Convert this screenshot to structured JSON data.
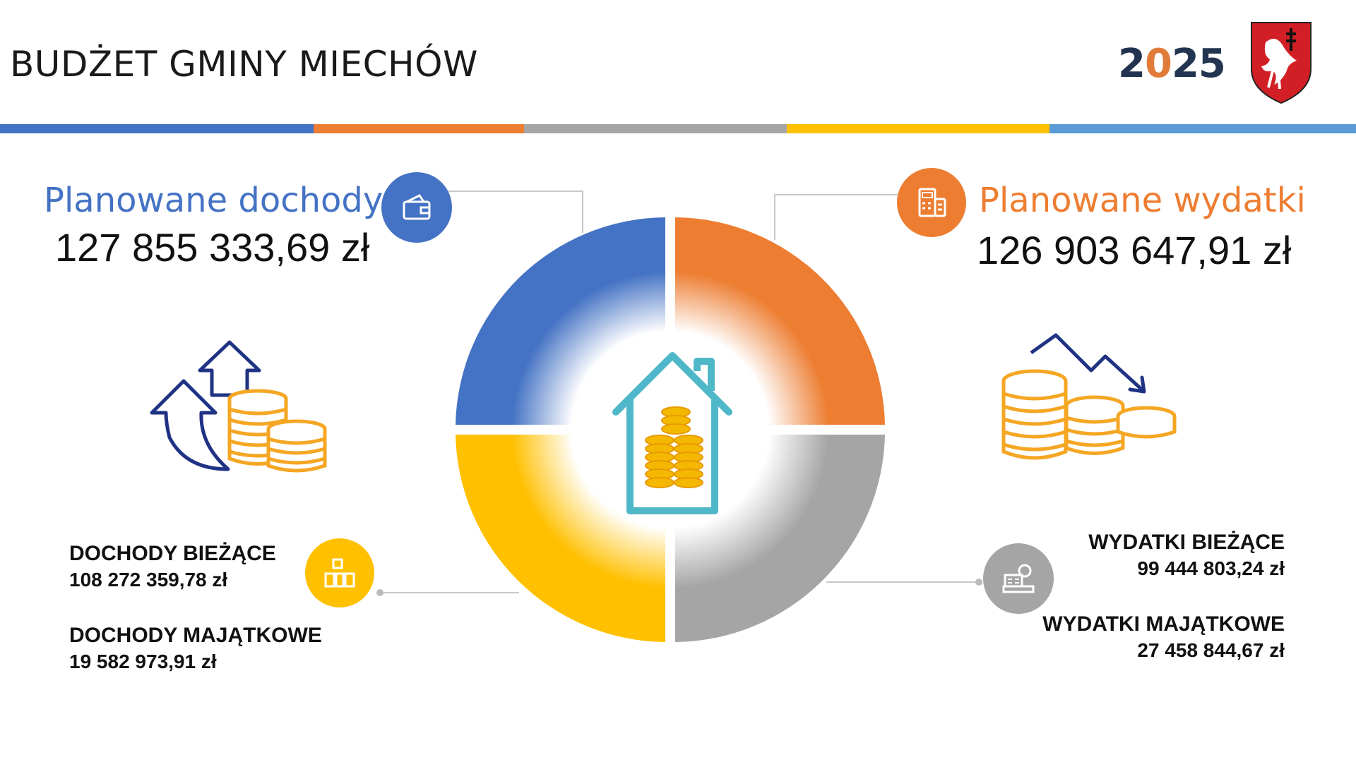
{
  "header": {
    "title": "BUDŻET GMINY MIECHÓW",
    "year_prefix": "2",
    "year_accent": "0",
    "year_suffix": "25"
  },
  "colors": {
    "blue": "#4472c4",
    "orange": "#ed7d31",
    "gray": "#a5a5a5",
    "yellow": "#ffc000",
    "lightblue": "#5b9bd5",
    "teal": "#4fb8c8",
    "navy": "#1f3284",
    "coin": "#f5a623"
  },
  "income": {
    "title": "Planowane dochody",
    "total": "127 855 333,69 zł",
    "current_label": "DOCHODY BIEŻĄCE",
    "current_value": "108 272 359,78 zł",
    "property_label": "DOCHODY MAJĄTKOWE",
    "property_value": "19 582 973,91 zł"
  },
  "expenses": {
    "title": "Planowane wydatki",
    "total": "126 903 647,91 zł",
    "current_label": "WYDATKI BIEŻĄCE",
    "current_value": "99 444 803,24 zł",
    "property_label": "WYDATKI MAJĄTKOWE",
    "property_value": "27 458 844,67 zł"
  },
  "icons": {
    "income_badge": "wallet-icon",
    "expense_badge": "calculator-icon",
    "income_current_badge": "buildings-icon",
    "expense_current_badge": "cash-register-icon",
    "center": "house-coins-icon",
    "left_illustration": "arrows-up-coins-icon",
    "right_illustration": "arrow-down-coins-icon"
  }
}
